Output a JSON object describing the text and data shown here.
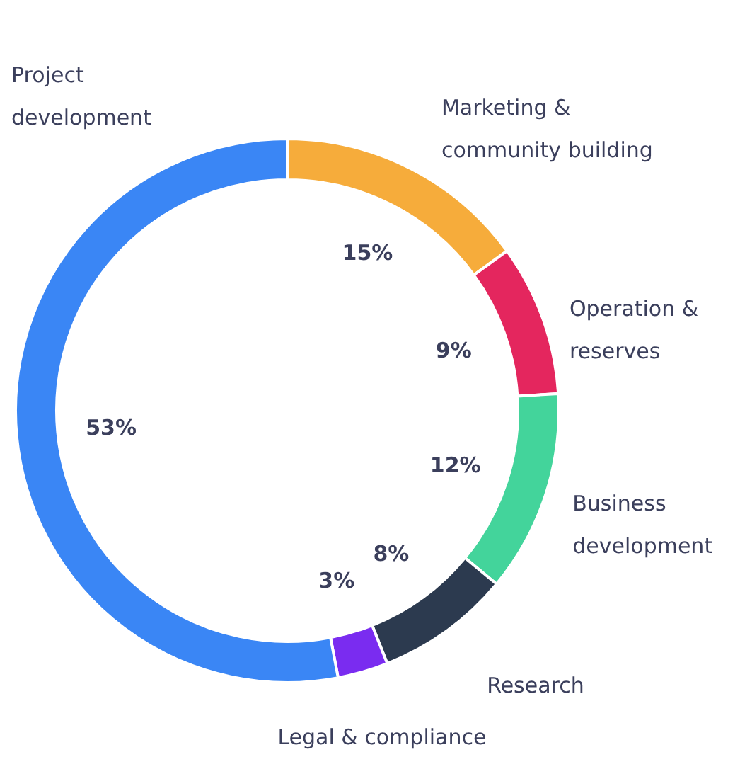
{
  "chart_data": {
    "type": "donut",
    "categories": [
      "Marketing &\ncommunity building",
      "Operation &\nreserves",
      "Business\ndevelopment",
      "Research",
      "Legal & compliance",
      "Project\ndevelopment"
    ],
    "values": [
      15,
      9,
      12,
      8,
      3,
      53
    ],
    "value_labels": [
      "15%",
      "9%",
      "12%",
      "8%",
      "3%",
      "53%"
    ],
    "colors": [
      "#f6ac3b",
      "#e4265e",
      "#43d49b",
      "#2c3a4f",
      "#7a2cf0",
      "#3a86f5"
    ]
  }
}
